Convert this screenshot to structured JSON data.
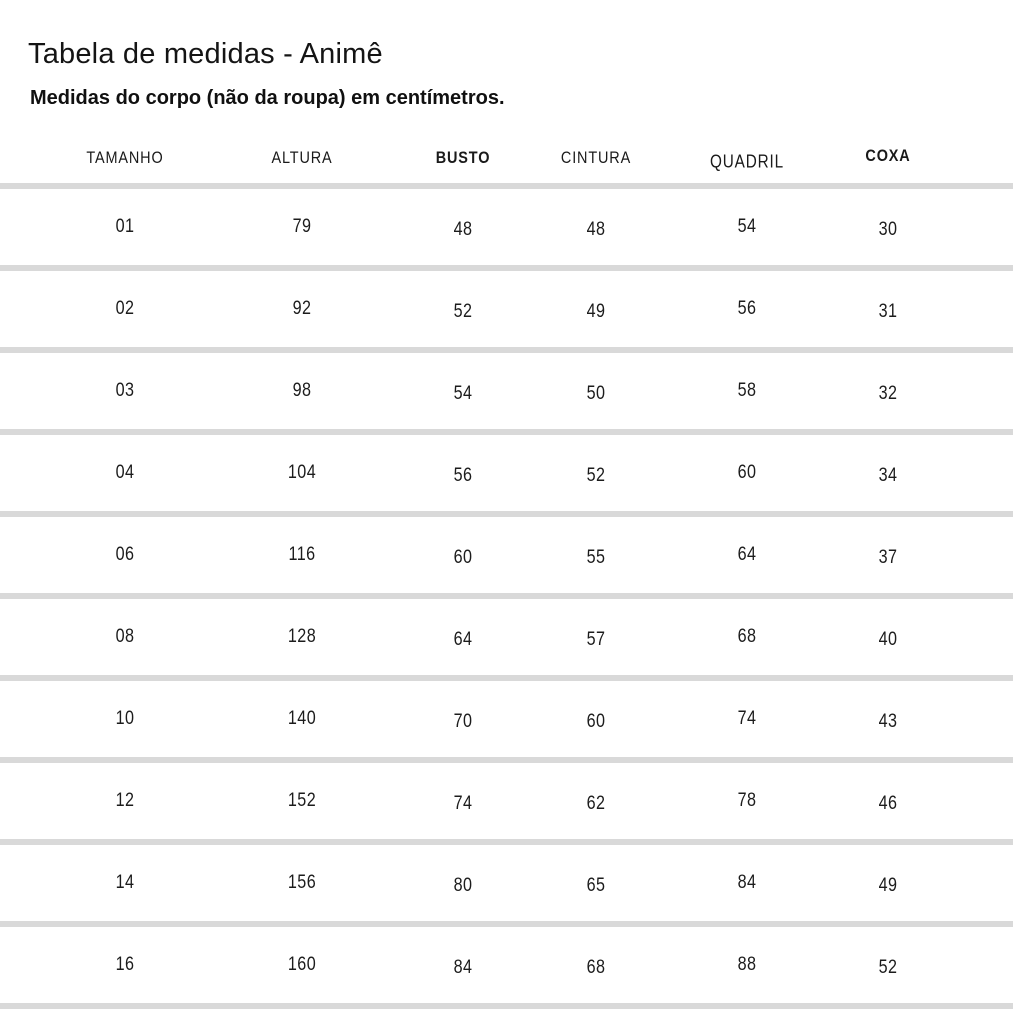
{
  "title": "Tabela de medidas - Animê",
  "subtitle": "Medidas do corpo (não da roupa) em centímetros.",
  "divider_color": "#d9d9d9",
  "table": {
    "columns": [
      {
        "label": "TAMANHO",
        "bold": false
      },
      {
        "label": "ALTURA",
        "bold": false
      },
      {
        "label": "BUSTO",
        "bold": true
      },
      {
        "label": "CINTURA",
        "bold": false
      },
      {
        "label": "QUADRIL",
        "bold": false
      },
      {
        "label": "COXA",
        "bold": true
      }
    ],
    "rows": [
      [
        "01",
        "79",
        "48",
        "48",
        "54",
        "30"
      ],
      [
        "02",
        "92",
        "52",
        "49",
        "56",
        "31"
      ],
      [
        "03",
        "98",
        "54",
        "50",
        "58",
        "32"
      ],
      [
        "04",
        "104",
        "56",
        "52",
        "60",
        "34"
      ],
      [
        "06",
        "116",
        "60",
        "55",
        "64",
        "37"
      ],
      [
        "08",
        "128",
        "64",
        "57",
        "68",
        "40"
      ],
      [
        "10",
        "140",
        "70",
        "60",
        "74",
        "43"
      ],
      [
        "12",
        "152",
        "74",
        "62",
        "78",
        "46"
      ],
      [
        "14",
        "156",
        "80",
        "65",
        "84",
        "49"
      ],
      [
        "16",
        "160",
        "84",
        "68",
        "88",
        "52"
      ]
    ]
  }
}
